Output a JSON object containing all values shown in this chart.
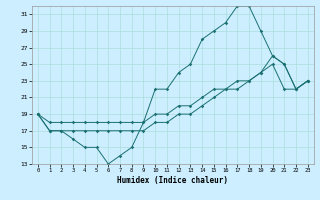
{
  "xlabel": "Humidex (Indice chaleur)",
  "bg_color": "#cceeff",
  "grid_color": "#aadddd",
  "line_color": "#1a7070",
  "xlim": [
    -0.5,
    23.5
  ],
  "ylim": [
    13,
    32
  ],
  "yticks": [
    13,
    15,
    17,
    19,
    21,
    23,
    25,
    27,
    29,
    31
  ],
  "xticks": [
    0,
    1,
    2,
    3,
    4,
    5,
    6,
    7,
    8,
    9,
    10,
    11,
    12,
    13,
    14,
    15,
    16,
    17,
    18,
    19,
    20,
    21,
    22,
    23
  ],
  "line1_x": [
    0,
    1,
    2,
    3,
    4,
    5,
    6,
    7,
    8,
    9,
    10,
    11,
    12,
    13,
    14,
    15,
    16,
    17,
    18,
    19,
    20,
    21,
    22,
    23
  ],
  "line1_y": [
    19,
    17,
    17,
    16,
    15,
    15,
    13,
    14,
    15,
    18,
    22,
    22,
    24,
    25,
    28,
    29,
    30,
    32,
    32,
    29,
    26,
    25,
    22,
    23
  ],
  "line2_x": [
    0,
    1,
    2,
    3,
    4,
    5,
    6,
    7,
    8,
    9,
    10,
    11,
    12,
    13,
    14,
    15,
    16,
    17,
    18,
    19,
    20,
    21,
    22,
    23
  ],
  "line2_y": [
    19,
    18,
    18,
    18,
    18,
    18,
    18,
    18,
    18,
    18,
    19,
    19,
    20,
    20,
    21,
    22,
    22,
    23,
    23,
    24,
    26,
    25,
    22,
    23
  ],
  "line3_x": [
    0,
    1,
    2,
    3,
    4,
    5,
    6,
    7,
    8,
    9,
    10,
    11,
    12,
    13,
    14,
    15,
    16,
    17,
    18,
    19,
    20,
    21,
    22,
    23
  ],
  "line3_y": [
    19,
    17,
    17,
    17,
    17,
    17,
    17,
    17,
    17,
    17,
    18,
    18,
    19,
    19,
    20,
    21,
    22,
    22,
    23,
    24,
    25,
    22,
    22,
    23
  ]
}
